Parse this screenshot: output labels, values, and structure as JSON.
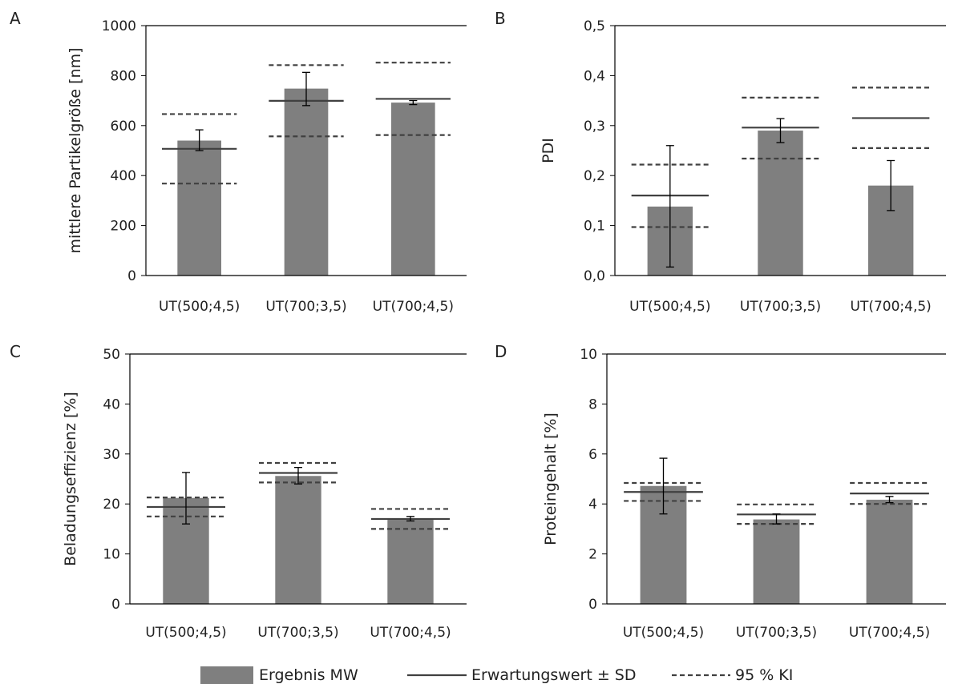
{
  "colors": {
    "bar": "#7f7f7f",
    "expected": "#404040",
    "ci": "#404040",
    "error": "#000000",
    "axis": "#000000"
  },
  "legend": {
    "bar_label": "Ergebnis MW",
    "expected_label": "Erwartungswert ± SD",
    "ci_label": "95 % KI"
  },
  "chart_data": [
    {
      "panel": "A",
      "type": "bar",
      "ylabel": "mittlere Partikelgröße [nm]",
      "categories": [
        "UT(500;4,5)",
        "UT(700;3,5)",
        "UT(700;4,5)"
      ],
      "ylim": [
        0,
        1000
      ],
      "yticks": [
        0,
        200,
        400,
        600,
        800,
        1000
      ],
      "ytick_labels": [
        "0",
        "200",
        "400",
        "600",
        "800",
        "1000"
      ],
      "values": [
        540,
        748,
        692
      ],
      "error": [
        [
          500,
          583
        ],
        [
          680,
          813
        ],
        [
          684,
          700
        ]
      ],
      "expected": [
        507,
        699,
        707
      ],
      "ci_upper": [
        646,
        842,
        852
      ],
      "ci_lower": [
        368,
        557,
        562
      ]
    },
    {
      "panel": "B",
      "type": "bar",
      "ylabel": "PDI",
      "categories": [
        "UT(500;4,5)",
        "UT(700;3,5)",
        "UT(700;4,5)"
      ],
      "ylim": [
        0,
        0.5
      ],
      "yticks": [
        0,
        0.1,
        0.2,
        0.3,
        0.4,
        0.5
      ],
      "ytick_labels": [
        "0,0",
        "0,1",
        "0,2",
        "0,3",
        "0,4",
        "0,5"
      ],
      "values": [
        0.138,
        0.29,
        0.18
      ],
      "error": [
        [
          0.017,
          0.26
        ],
        [
          0.266,
          0.314
        ],
        [
          0.13,
          0.23
        ]
      ],
      "expected": [
        0.16,
        0.296,
        0.315
      ],
      "ci_upper": [
        0.222,
        0.356,
        0.376
      ],
      "ci_lower": [
        0.097,
        0.234,
        0.255
      ]
    },
    {
      "panel": "C",
      "type": "bar",
      "ylabel": "Beladungseffizienz [%]",
      "categories": [
        "UT(500;4,5)",
        "UT(700;3,5)",
        "UT(700;4,5)"
      ],
      "ylim": [
        0,
        50
      ],
      "yticks": [
        0,
        10,
        20,
        30,
        40,
        50
      ],
      "ytick_labels": [
        "0",
        "10",
        "20",
        "30",
        "40",
        "50"
      ],
      "values": [
        21.2,
        25.6,
        17.0
      ],
      "error": [
        [
          16.0,
          26.3
        ],
        [
          24.0,
          27.3
        ],
        [
          16.6,
          17.5
        ]
      ],
      "expected": [
        19.4,
        26.2,
        17.0
      ],
      "ci_upper": [
        21.3,
        28.2,
        19.0
      ],
      "ci_lower": [
        17.5,
        24.3,
        15.0
      ]
    },
    {
      "panel": "D",
      "type": "bar",
      "ylabel": "Proteingehalt [%]",
      "categories": [
        "UT(500;4,5)",
        "UT(700;3,5)",
        "UT(700;4,5)"
      ],
      "ylim": [
        0,
        10
      ],
      "yticks": [
        0,
        2,
        4,
        6,
        8,
        10
      ],
      "ytick_labels": [
        "0",
        "2",
        "4",
        "6",
        "8",
        "10"
      ],
      "values": [
        4.72,
        3.38,
        4.17
      ],
      "error": [
        [
          3.6,
          5.83
        ],
        [
          3.2,
          3.6
        ],
        [
          4.05,
          4.3
        ]
      ],
      "expected": [
        4.48,
        3.58,
        4.42
      ],
      "ci_upper": [
        4.84,
        3.98,
        4.84
      ],
      "ci_lower": [
        4.12,
        3.2,
        4.0
      ]
    }
  ]
}
